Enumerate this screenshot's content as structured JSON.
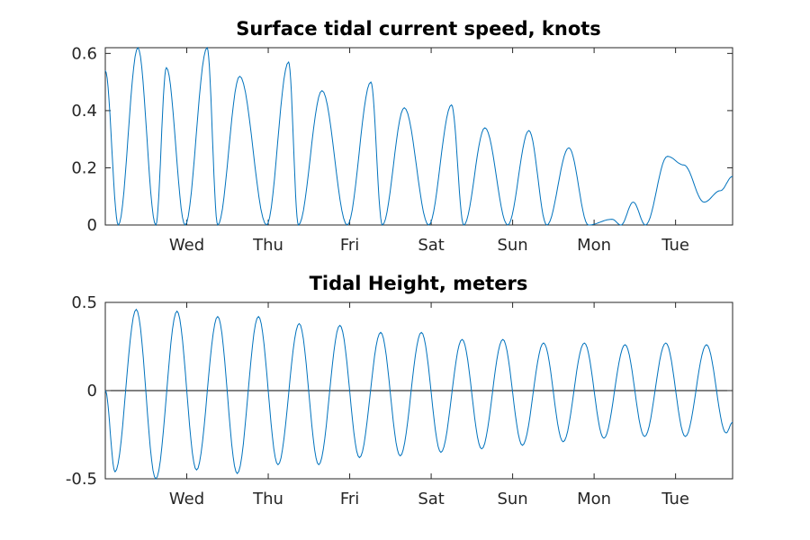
{
  "colors": {
    "series": "#0072bd",
    "axis": "#262626",
    "zero_line": "#000000",
    "background": "#ffffff"
  },
  "chart_data": [
    {
      "type": "line",
      "title": "Surface tidal current speed, knots",
      "xlabel": "",
      "ylabel": "",
      "ylim": [
        0,
        0.62
      ],
      "yticks": [
        0,
        0.2,
        0.4,
        0.6
      ],
      "ytick_labels": [
        "0",
        "0.2",
        "0.4",
        "0.6"
      ],
      "xlim_days": [
        0,
        7.7
      ],
      "xtick_labels": [
        "Wed",
        "Thu",
        "Fri",
        "Sat",
        "Sun",
        "Mon",
        "Tue"
      ],
      "xtick_day": [
        1,
        2,
        3,
        4,
        5,
        6,
        7
      ],
      "grid": false,
      "series": [
        {
          "x": [
            0.0,
            0.16,
            0.4,
            0.62,
            0.75,
            0.98,
            1.25,
            1.38,
            1.65,
            1.98,
            2.25,
            2.37,
            2.66,
            2.97,
            3.26,
            3.4,
            3.67,
            3.97,
            4.25,
            4.4,
            4.66,
            4.94,
            5.2,
            5.42,
            5.69,
            5.93,
            6.22,
            6.33,
            6.48,
            6.63,
            6.9,
            7.1,
            7.35,
            7.55,
            7.7
          ],
          "y": [
            0.54,
            0.0,
            0.62,
            0.0,
            0.55,
            0.0,
            0.62,
            0.0,
            0.52,
            0.0,
            0.57,
            0.0,
            0.47,
            0.0,
            0.5,
            0.0,
            0.41,
            0.0,
            0.42,
            0.0,
            0.34,
            0.0,
            0.33,
            0.0,
            0.27,
            0.0,
            0.02,
            0.0,
            0.08,
            0.0,
            0.24,
            0.21,
            0.08,
            0.12,
            0.17
          ]
        }
      ]
    },
    {
      "type": "line",
      "title": "Tidal Height, meters",
      "xlabel": "",
      "ylabel": "",
      "ylim": [
        -0.5,
        0.5
      ],
      "yticks": [
        -0.5,
        0,
        0.5
      ],
      "ytick_labels": [
        "-0.5",
        "0",
        "0.5"
      ],
      "xlim_days": [
        0,
        7.7
      ],
      "xtick_labels": [
        "Wed",
        "Thu",
        "Fri",
        "Sat",
        "Sun",
        "Mon",
        "Tue"
      ],
      "xtick_day": [
        1,
        2,
        3,
        4,
        5,
        6,
        7
      ],
      "grid": false,
      "zero_line": true,
      "series": [
        {
          "x": [
            0.0,
            0.12,
            0.38,
            0.62,
            0.88,
            1.12,
            1.38,
            1.62,
            1.88,
            2.12,
            2.38,
            2.62,
            2.88,
            3.12,
            3.38,
            3.62,
            3.88,
            4.12,
            4.38,
            4.62,
            4.88,
            5.12,
            5.38,
            5.62,
            5.88,
            6.12,
            6.38,
            6.62,
            6.88,
            7.12,
            7.38,
            7.62,
            7.7
          ],
          "y": [
            0.0,
            -0.46,
            0.46,
            -0.5,
            0.45,
            -0.45,
            0.42,
            -0.47,
            0.42,
            -0.42,
            0.38,
            -0.42,
            0.37,
            -0.38,
            0.33,
            -0.37,
            0.33,
            -0.35,
            0.29,
            -0.33,
            0.29,
            -0.31,
            0.27,
            -0.29,
            0.27,
            -0.27,
            0.26,
            -0.26,
            0.27,
            -0.26,
            0.26,
            -0.24,
            -0.18
          ]
        }
      ]
    }
  ]
}
